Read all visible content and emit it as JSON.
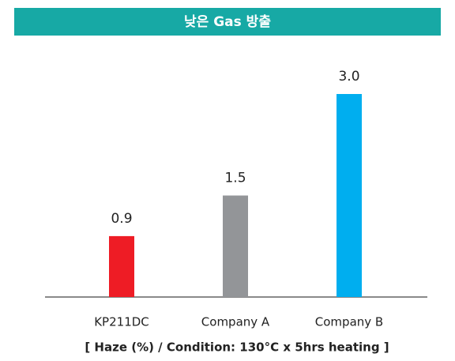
{
  "chart_data": {
    "type": "bar",
    "title": "낮은 Gas 방출",
    "categories": [
      "KP211DC",
      "Company A",
      "Company B"
    ],
    "values": [
      0.9,
      1.5,
      3.0
    ],
    "value_labels": [
      "0.9",
      "1.5",
      "3.0"
    ],
    "colors": [
      "#ee1c25",
      "#939598",
      "#00aeef"
    ],
    "xlabel": "[ Haze (%) / Condition: 130°C x 5hrs heating ]",
    "ylim": [
      0,
      3
    ]
  }
}
